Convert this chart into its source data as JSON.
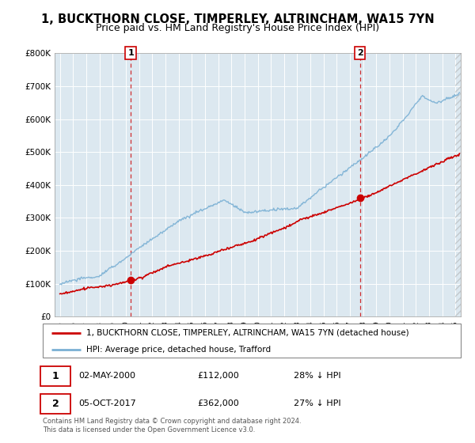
{
  "title": "1, BUCKTHORN CLOSE, TIMPERLEY, ALTRINCHAM, WA15 7YN",
  "subtitle": "Price paid vs. HM Land Registry's House Price Index (HPI)",
  "ylim": [
    0,
    800000
  ],
  "yticks": [
    0,
    100000,
    200000,
    300000,
    400000,
    500000,
    600000,
    700000,
    800000
  ],
  "ytick_labels": [
    "£0",
    "£100K",
    "£200K",
    "£300K",
    "£400K",
    "£500K",
    "£600K",
    "£700K",
    "£800K"
  ],
  "xlim_start": 1994.6,
  "xlim_end": 2025.4,
  "hpi_color": "#7ab0d4",
  "property_color": "#cc0000",
  "marker1_year": 2000.37,
  "marker1_value": 112000,
  "marker1_label": "1",
  "marker2_year": 2017.75,
  "marker2_value": 362000,
  "marker2_label": "2",
  "dashed_line_color": "#cc0000",
  "grid_color": "#cccccc",
  "background_color": "#dce8f0",
  "legend_line1": "1, BUCKTHORN CLOSE, TIMPERLEY, ALTRINCHAM, WA15 7YN (detached house)",
  "legend_line2": "HPI: Average price, detached house, Trafford",
  "annotation1_date": "02-MAY-2000",
  "annotation1_price": "£112,000",
  "annotation1_hpi": "28% ↓ HPI",
  "annotation2_date": "05-OCT-2017",
  "annotation2_price": "£362,000",
  "annotation2_hpi": "27% ↓ HPI",
  "footnote": "Contains HM Land Registry data © Crown copyright and database right 2024.\nThis data is licensed under the Open Government Licence v3.0.",
  "title_fontsize": 10.5,
  "subtitle_fontsize": 9
}
